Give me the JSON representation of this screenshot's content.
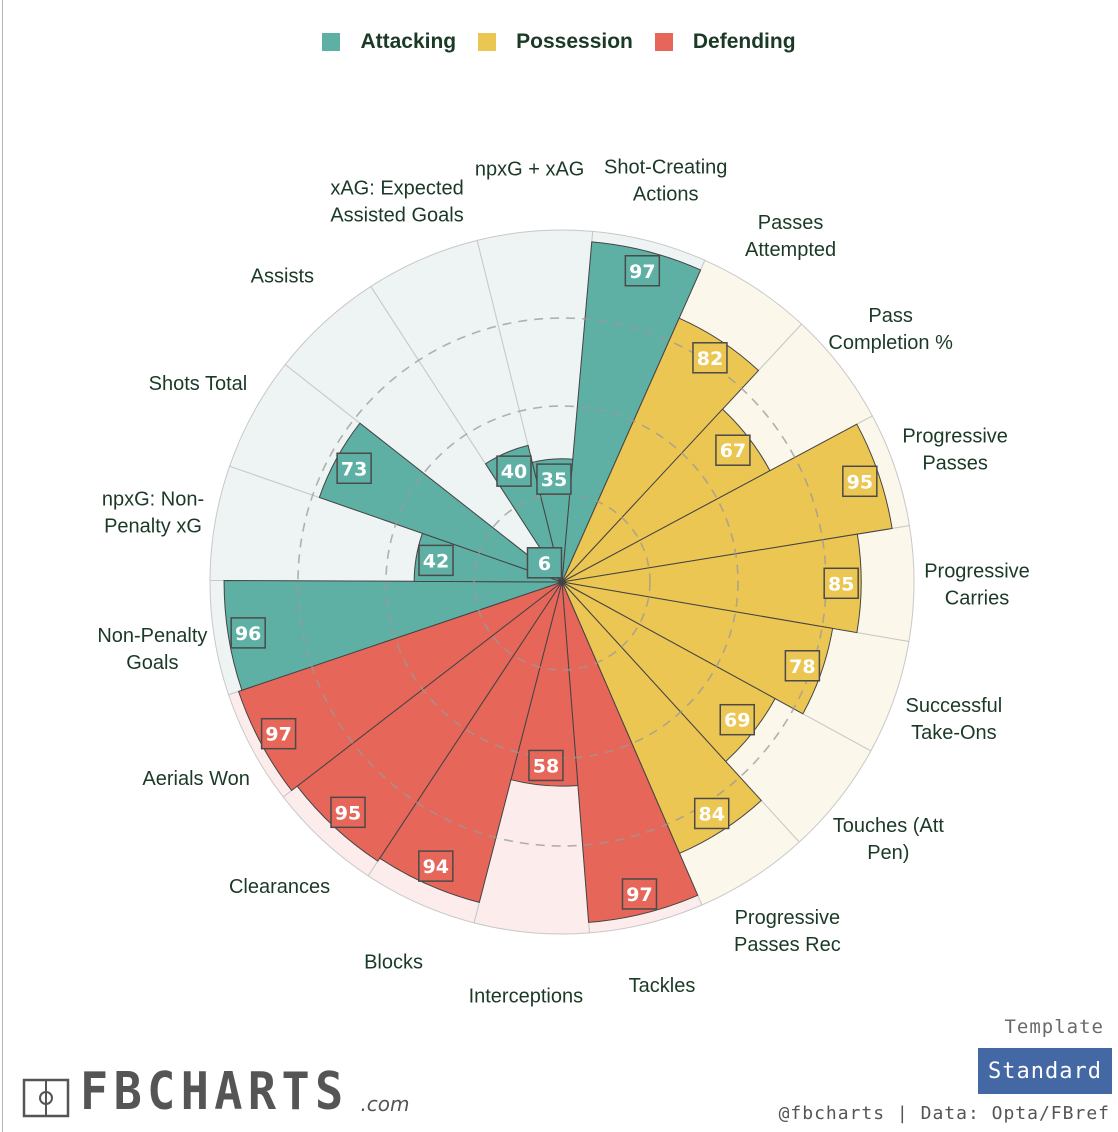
{
  "legend": [
    {
      "label": "Attacking",
      "color": "#5fb0a4"
    },
    {
      "label": "Possession",
      "color": "#ecc653"
    },
    {
      "label": "Defending",
      "color": "#e6665a"
    }
  ],
  "chart_data": {
    "type": "radar-bar",
    "ylim": [
      0,
      100
    ],
    "grid_rings": [
      25,
      50,
      75
    ],
    "categories": [
      {
        "name": "Shot-Creating Actions",
        "label_lines": [
          "Shot-Creating",
          "Actions"
        ],
        "group": "Attacking",
        "value": 97
      },
      {
        "name": "Passes Attempted",
        "label_lines": [
          "Passes",
          "Attempted"
        ],
        "group": "Possession",
        "value": 82
      },
      {
        "name": "Pass Completion %",
        "label_lines": [
          "Pass",
          "Completion %"
        ],
        "group": "Possession",
        "value": 67
      },
      {
        "name": "Progressive Passes",
        "label_lines": [
          "Progressive",
          "Passes"
        ],
        "group": "Possession",
        "value": 95
      },
      {
        "name": "Progressive Carries",
        "label_lines": [
          "Progressive",
          "Carries"
        ],
        "group": "Possession",
        "value": 85
      },
      {
        "name": "Successful Take-Ons",
        "label_lines": [
          "Successful",
          "Take-Ons"
        ],
        "group": "Possession",
        "value": 78
      },
      {
        "name": "Touches (Att Pen)",
        "label_lines": [
          "Touches (Att",
          "Pen)"
        ],
        "group": "Possession",
        "value": 69
      },
      {
        "name": "Progressive Passes Rec",
        "label_lines": [
          "Progressive",
          "Passes Rec"
        ],
        "group": "Possession",
        "value": 84
      },
      {
        "name": "Tackles",
        "label_lines": [
          "Tackles"
        ],
        "group": "Defending",
        "value": 97
      },
      {
        "name": "Interceptions",
        "label_lines": [
          "Interceptions"
        ],
        "group": "Defending",
        "value": 58
      },
      {
        "name": "Blocks",
        "label_lines": [
          "Blocks"
        ],
        "group": "Defending",
        "value": 94
      },
      {
        "name": "Clearances",
        "label_lines": [
          "Clearances"
        ],
        "group": "Defending",
        "value": 95
      },
      {
        "name": "Aerials Won",
        "label_lines": [
          "Aerials Won"
        ],
        "group": "Defending",
        "value": 97
      },
      {
        "name": "Non-Penalty Goals",
        "label_lines": [
          "Non-Penalty",
          "Goals"
        ],
        "group": "Attacking",
        "value": 96
      },
      {
        "name": "npxG: Non-Penalty xG",
        "label_lines": [
          "npxG: Non-",
          "Penalty xG"
        ],
        "group": "Attacking",
        "value": 42
      },
      {
        "name": "Shots Total",
        "label_lines": [
          "Shots Total"
        ],
        "group": "Attacking",
        "value": 73
      },
      {
        "name": "Assists",
        "label_lines": [
          "Assists"
        ],
        "group": "Attacking",
        "value": 6
      },
      {
        "name": "xAG: Expected Assisted Goals",
        "label_lines": [
          "xAG: Expected",
          "Assisted Goals"
        ],
        "group": "Attacking",
        "value": 40
      },
      {
        "name": "npxG + xAG",
        "label_lines": [
          "npxG + xAG"
        ],
        "group": "Attacking",
        "value": 35
      }
    ]
  },
  "footer": {
    "template_label": "Template",
    "template_button": "Standard",
    "credit": "@fbcharts | Data: Opta/FBref",
    "logo_text": "FBCHARTS",
    "logo_sub": ".com"
  },
  "colors": {
    "attacking_bg": "#edf4f3",
    "possession_bg": "#fbf7ea",
    "defending_bg": "#fcecec",
    "label_text": "#1b3a26"
  }
}
